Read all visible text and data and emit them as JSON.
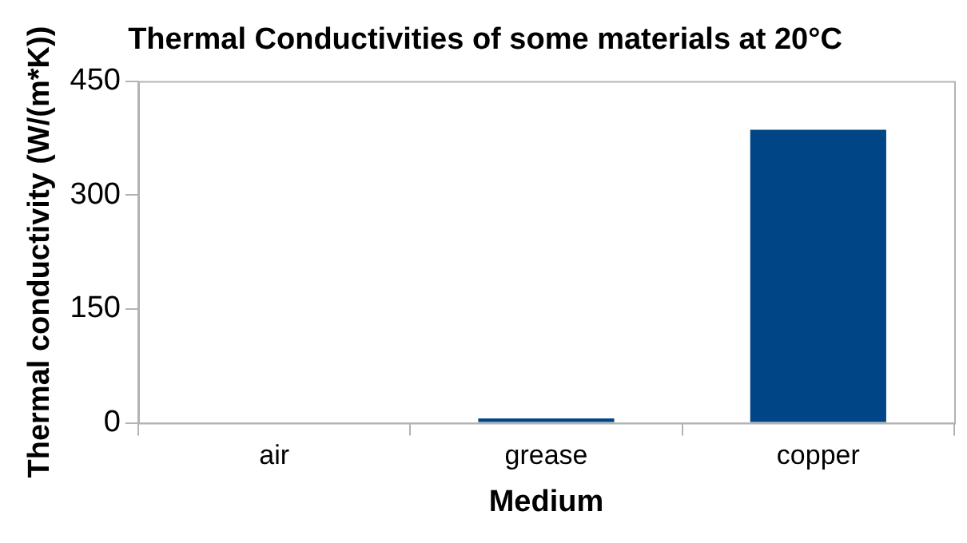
{
  "chart_data": {
    "type": "bar",
    "title": "Thermal Conductivities of some materials at 20°C",
    "xlabel": "Medium",
    "ylabel": "Thermal conductivity (W/(m*K))",
    "categories": [
      "air",
      "grease",
      "copper"
    ],
    "values": [
      0,
      6,
      386
    ],
    "color": "#004586",
    "ylim": [
      0,
      450
    ],
    "yticks": [
      0,
      150,
      300,
      450
    ],
    "grid": false,
    "legend": false
  }
}
